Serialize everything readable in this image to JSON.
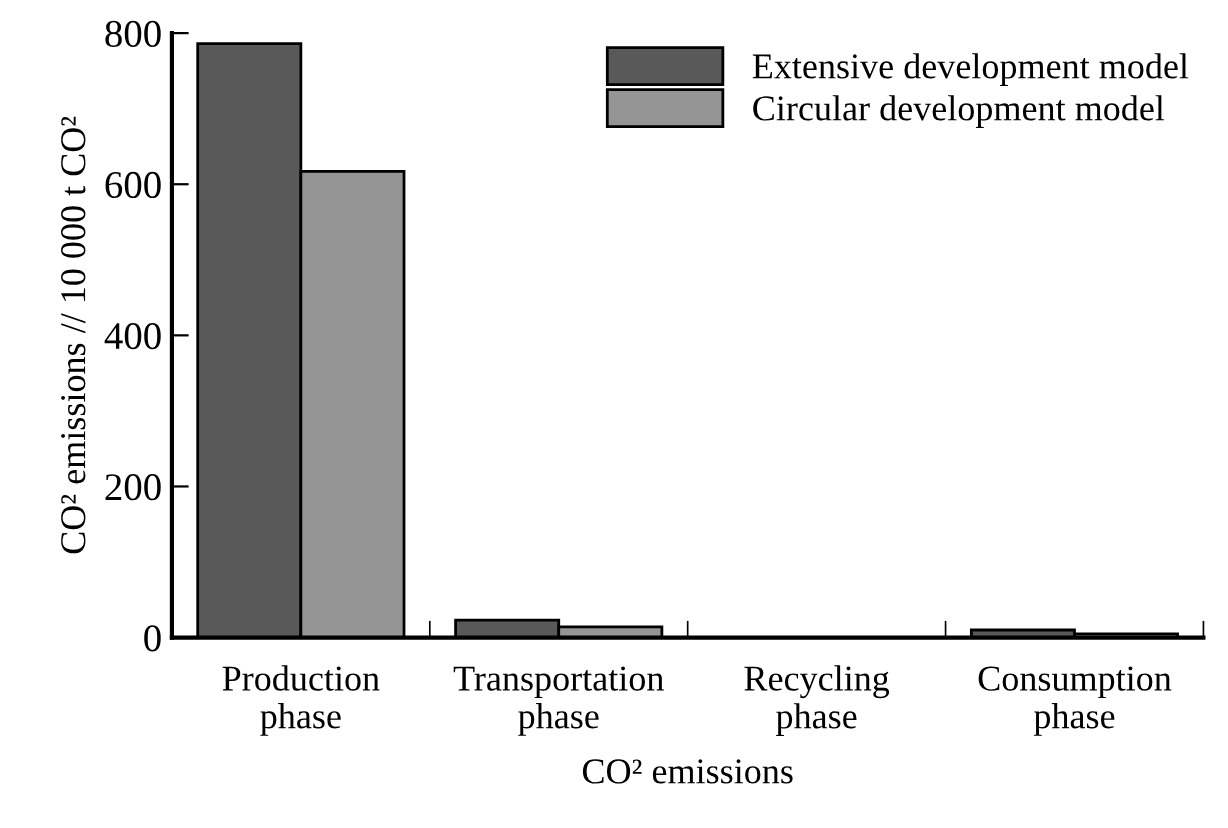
{
  "chart_data": {
    "type": "bar",
    "xlabel": "CO² emissions",
    "ylabel": "CO² emissions // 10 000 t CO²",
    "categories": [
      "Production\nphase",
      "Transportation\nphase",
      "Recycling\nphase",
      "Consumption\nphase"
    ],
    "series": [
      {
        "name": "Extensive development model",
        "color": "#595959",
        "values": [
          786,
          23,
          null,
          10
        ]
      },
      {
        "name": "Circular development model",
        "color": "#959595",
        "values": [
          617,
          14,
          null,
          5
        ]
      }
    ],
    "ylim": [
      0,
      800
    ],
    "yticks": [
      0,
      200,
      400,
      600,
      800
    ],
    "grid": false,
    "legend": "top right"
  }
}
